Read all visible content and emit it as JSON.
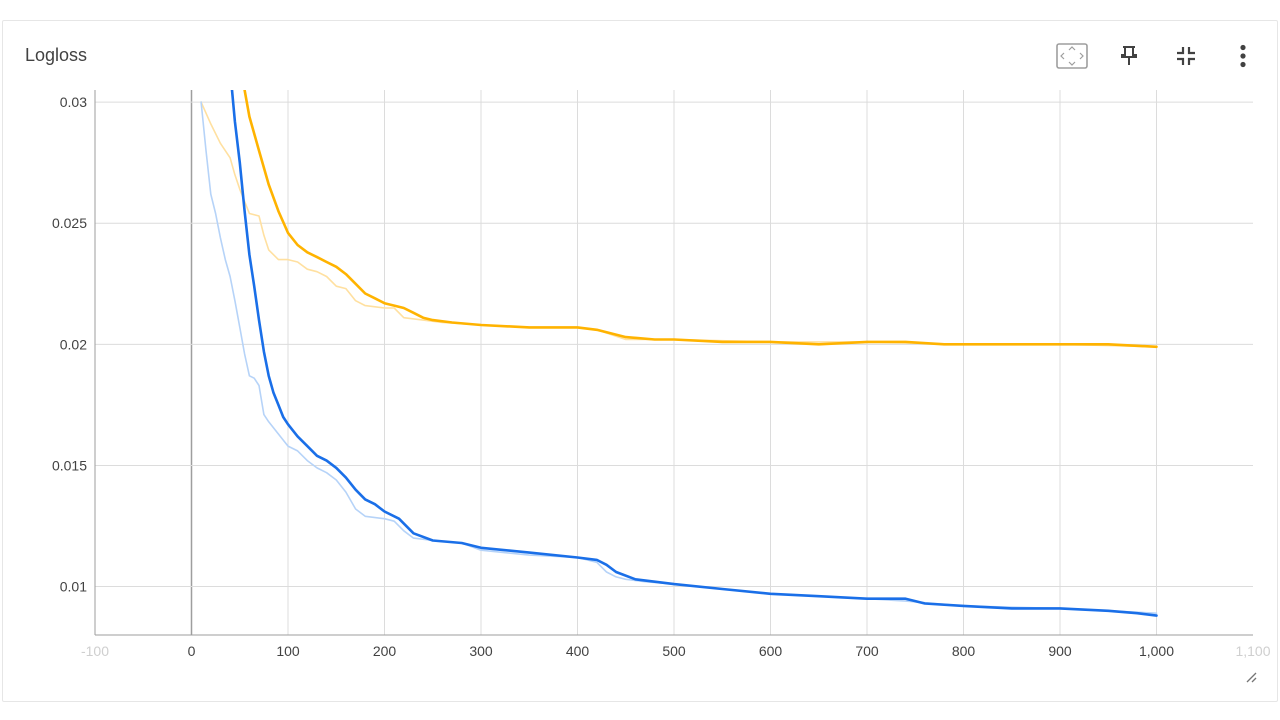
{
  "card": {
    "title": "Logloss"
  },
  "toolbar": {
    "buttons": [
      {
        "name": "fit-domain-button",
        "icon": "fit-to-screen-icon"
      },
      {
        "name": "pin-button",
        "icon": "pin-icon"
      },
      {
        "name": "collapse-button",
        "icon": "collapse-icon"
      },
      {
        "name": "more-button",
        "icon": "more-vert-icon"
      }
    ]
  },
  "chart_data": {
    "type": "line",
    "title": "Logloss",
    "xlabel": "",
    "ylabel": "",
    "xlim": [
      -100,
      1100
    ],
    "ylim": [
      0.008,
      0.0305
    ],
    "grid": true,
    "x_ticks": [
      {
        "v": -100,
        "label": "-100"
      },
      {
        "v": 0,
        "label": "0"
      },
      {
        "v": 100,
        "label": "100"
      },
      {
        "v": 200,
        "label": "200"
      },
      {
        "v": 300,
        "label": "300"
      },
      {
        "v": 400,
        "label": "400"
      },
      {
        "v": 500,
        "label": "500"
      },
      {
        "v": 600,
        "label": "600"
      },
      {
        "v": 700,
        "label": "700"
      },
      {
        "v": 800,
        "label": "800"
      },
      {
        "v": 900,
        "label": "900"
      },
      {
        "v": 1000,
        "label": "1,000"
      },
      {
        "v": 1100,
        "label": "1,100"
      }
    ],
    "y_ticks": [
      {
        "v": 0.01,
        "label": "0.01"
      },
      {
        "v": 0.015,
        "label": "0.015"
      },
      {
        "v": 0.02,
        "label": "0.02"
      },
      {
        "v": 0.025,
        "label": "0.025"
      },
      {
        "v": 0.03,
        "label": "0.03"
      }
    ],
    "series": [
      {
        "color": "#ffb300",
        "smoothed": true,
        "x": [
          55,
          60,
          70,
          80,
          90,
          100,
          110,
          120,
          130,
          140,
          150,
          160,
          170,
          180,
          190,
          200,
          210,
          220,
          230,
          240,
          250,
          270,
          300,
          350,
          400,
          420,
          450,
          480,
          500,
          550,
          600,
          650,
          700,
          740,
          780,
          800,
          850,
          900,
          950,
          1000
        ],
        "y": [
          0.0305,
          0.0294,
          0.028,
          0.0266,
          0.0255,
          0.0246,
          0.0241,
          0.0238,
          0.0236,
          0.0234,
          0.0232,
          0.0229,
          0.0225,
          0.0221,
          0.0219,
          0.0217,
          0.0216,
          0.0215,
          0.0213,
          0.0211,
          0.021,
          0.0209,
          0.0208,
          0.0207,
          0.0207,
          0.0206,
          0.0203,
          0.0202,
          0.0202,
          0.0201,
          0.0201,
          0.02,
          0.0201,
          0.0201,
          0.02,
          0.02,
          0.02,
          0.02,
          0.02,
          0.0199
        ]
      },
      {
        "color": "#ffe0a0",
        "smoothed": false,
        "x": [
          10,
          20,
          30,
          40,
          45,
          50,
          60,
          70,
          75,
          80,
          90,
          100,
          110,
          120,
          130,
          140,
          150,
          160,
          170,
          180,
          200,
          210,
          220,
          240,
          260,
          300,
          350,
          400,
          420,
          450,
          500,
          600,
          700,
          800,
          900,
          1000
        ],
        "y": [
          0.03,
          0.0291,
          0.0283,
          0.0277,
          0.027,
          0.0264,
          0.0254,
          0.0253,
          0.0245,
          0.0239,
          0.0235,
          0.0235,
          0.0234,
          0.0231,
          0.023,
          0.0228,
          0.0224,
          0.0223,
          0.0218,
          0.0216,
          0.0215,
          0.0215,
          0.0211,
          0.021,
          0.0209,
          0.0208,
          0.0207,
          0.0207,
          0.0206,
          0.0202,
          0.0202,
          0.0201,
          0.0201,
          0.02,
          0.02,
          0.0199
        ]
      },
      {
        "color": "#1a6fe8",
        "smoothed": true,
        "x": [
          42,
          45,
          50,
          55,
          60,
          65,
          70,
          75,
          80,
          85,
          90,
          95,
          100,
          110,
          120,
          130,
          140,
          150,
          160,
          170,
          180,
          190,
          200,
          215,
          230,
          250,
          280,
          300,
          350,
          400,
          420,
          430,
          440,
          460,
          500,
          550,
          600,
          650,
          700,
          740,
          760,
          800,
          850,
          900,
          950,
          980,
          1000
        ],
        "y": [
          0.0305,
          0.0292,
          0.0275,
          0.0255,
          0.0237,
          0.0224,
          0.021,
          0.0197,
          0.0187,
          0.018,
          0.0175,
          0.017,
          0.0167,
          0.0162,
          0.0158,
          0.0154,
          0.0152,
          0.0149,
          0.0145,
          0.014,
          0.0136,
          0.0134,
          0.0131,
          0.0128,
          0.0122,
          0.0119,
          0.0118,
          0.0116,
          0.0114,
          0.0112,
          0.0111,
          0.0109,
          0.0106,
          0.0103,
          0.0101,
          0.0099,
          0.0097,
          0.0096,
          0.0095,
          0.0095,
          0.0093,
          0.0092,
          0.0091,
          0.0091,
          0.009,
          0.0089,
          0.0088
        ]
      },
      {
        "color": "#b6d3f8",
        "smoothed": false,
        "x": [
          10,
          15,
          20,
          25,
          30,
          35,
          40,
          45,
          50,
          55,
          60,
          65,
          70,
          75,
          80,
          90,
          100,
          110,
          120,
          130,
          140,
          150,
          160,
          170,
          180,
          200,
          210,
          220,
          230,
          250,
          280,
          300,
          350,
          400,
          420,
          430,
          440,
          450,
          470,
          500,
          600,
          700,
          740,
          800,
          900,
          950,
          1000
        ],
        "y": [
          0.03,
          0.028,
          0.0262,
          0.0254,
          0.0244,
          0.0235,
          0.0228,
          0.0218,
          0.0207,
          0.0196,
          0.0187,
          0.0186,
          0.0183,
          0.0171,
          0.0168,
          0.0163,
          0.0158,
          0.0156,
          0.0152,
          0.0149,
          0.0147,
          0.0144,
          0.0139,
          0.0132,
          0.0129,
          0.0128,
          0.0127,
          0.0123,
          0.012,
          0.0119,
          0.0118,
          0.0115,
          0.0113,
          0.0112,
          0.011,
          0.0106,
          0.0104,
          0.0103,
          0.0102,
          0.0101,
          0.0097,
          0.0095,
          0.0094,
          0.0092,
          0.0091,
          0.009,
          0.0089
        ]
      }
    ]
  }
}
